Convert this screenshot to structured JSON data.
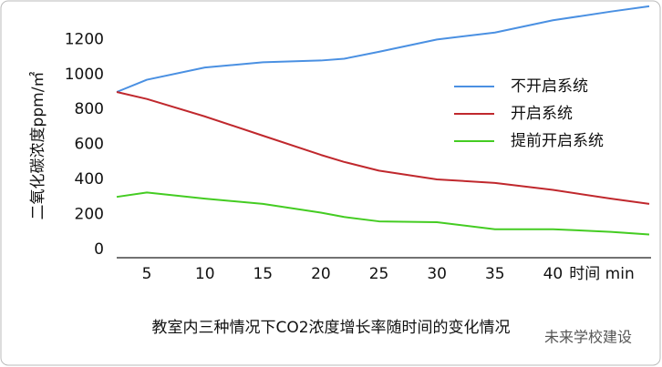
{
  "chart_data": {
    "type": "line",
    "title": "教室内三种情况下CO2浓度增长率随时间的变化情况",
    "y_label": "二氧化碳浓度ppm/㎡",
    "x_label": "时间 min",
    "watermark": "未来学校建设",
    "x": [
      2.4,
      5,
      10,
      15,
      20,
      22,
      25,
      30,
      35,
      40,
      45,
      48.3
    ],
    "series": [
      {
        "name": "不开启系统",
        "color": "#4a90e2",
        "values": [
          900,
          970,
          1040,
          1070,
          1080,
          1090,
          1130,
          1200,
          1240,
          1310,
          1360,
          1390
        ]
      },
      {
        "name": "开启系统",
        "color": "#c0282d",
        "values": [
          900,
          860,
          760,
          650,
          540,
          500,
          450,
          400,
          380,
          340,
          290,
          260
        ]
      },
      {
        "name": "提前开启系统",
        "color": "#44cc22",
        "values": [
          300,
          325,
          290,
          260,
          210,
          185,
          160,
          155,
          115,
          115,
          100,
          85
        ]
      }
    ],
    "xlim": [
      2.4,
      48.3
    ],
    "xticks": [
      5,
      10,
      15,
      20,
      25,
      30,
      35,
      40
    ],
    "ylim": [
      -48,
      1400
    ],
    "yticks": [
      0,
      200,
      400,
      600,
      800,
      1000,
      1200
    ],
    "grid": false,
    "legend": "right"
  }
}
